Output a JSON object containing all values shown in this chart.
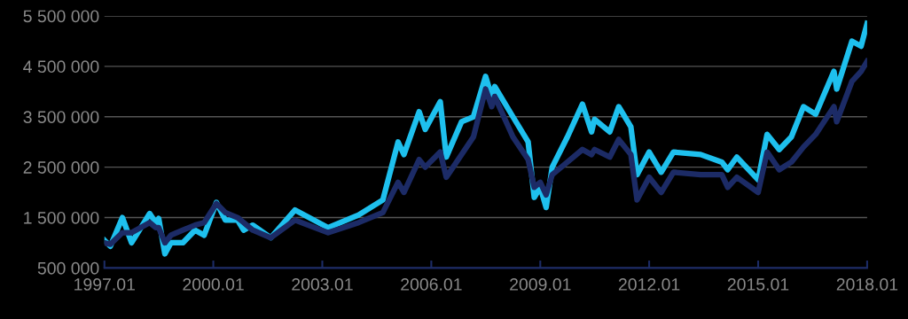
{
  "chart_data": {
    "type": "line",
    "x": [
      "1997-01",
      "1997-03",
      "1997-07",
      "1997-10",
      "1998-04",
      "1998-06",
      "1998-07",
      "1998-09",
      "1998-11",
      "1999-03",
      "1999-07",
      "1999-10",
      "2000-02",
      "2000-05",
      "2000-09",
      "2000-11",
      "2001-02",
      "2001-08",
      "2002-04",
      "2003-03",
      "2004-01",
      "2004-09",
      "2005-02",
      "2005-04",
      "2005-09",
      "2005-11",
      "2006-04",
      "2006-06",
      "2006-11",
      "2007-03",
      "2007-07",
      "2007-09",
      "2007-10",
      "2008-04",
      "2008-09",
      "2008-11",
      "2009-01",
      "2009-03",
      "2009-05",
      "2009-10",
      "2010-03",
      "2010-06",
      "2010-07",
      "2010-12",
      "2011-03",
      "2011-07",
      "2011-09",
      "2012-01",
      "2012-05",
      "2012-09",
      "2013-06",
      "2014-01",
      "2014-03",
      "2014-06",
      "2015-01",
      "2015-04",
      "2015-08",
      "2015-12",
      "2016-04",
      "2016-08",
      "2017-02",
      "2017-03",
      "2017-08",
      "2017-11",
      "2018-01"
    ],
    "series": [
      {
        "color": "#1ec0ee",
        "values": [
          1050000,
          930000,
          1500000,
          1000000,
          1580000,
          1400000,
          1480000,
          780000,
          1000000,
          1000000,
          1250000,
          1150000,
          1800000,
          1450000,
          1450000,
          1250000,
          1350000,
          1100000,
          1650000,
          1300000,
          1550000,
          1850000,
          3000000,
          2750000,
          3600000,
          3250000,
          3800000,
          2700000,
          3400000,
          3500000,
          4300000,
          3900000,
          4100000,
          3500000,
          3000000,
          1900000,
          2100000,
          1700000,
          2500000,
          3100000,
          3750000,
          3200000,
          3450000,
          3200000,
          3700000,
          3300000,
          2350000,
          2800000,
          2400000,
          2800000,
          2750000,
          2600000,
          2450000,
          2700000,
          2250000,
          3150000,
          2850000,
          3100000,
          3700000,
          3550000,
          4400000,
          4050000,
          5000000,
          4900000,
          5350000
        ]
      },
      {
        "color": "#1c2b66",
        "values": [
          1000000,
          970000,
          1200000,
          1200000,
          1400000,
          1300000,
          1300000,
          1000000,
          1150000,
          1250000,
          1350000,
          1400000,
          1780000,
          1600000,
          1500000,
          1400000,
          1250000,
          1100000,
          1450000,
          1200000,
          1400000,
          1600000,
          2200000,
          2000000,
          2650000,
          2500000,
          2800000,
          2300000,
          2750000,
          3100000,
          4050000,
          3700000,
          3900000,
          3100000,
          2650000,
          2100000,
          2200000,
          1950000,
          2350000,
          2600000,
          2850000,
          2750000,
          2850000,
          2700000,
          3050000,
          2750000,
          1850000,
          2300000,
          2000000,
          2400000,
          2350000,
          2350000,
          2100000,
          2300000,
          2000000,
          2800000,
          2450000,
          2600000,
          2900000,
          3150000,
          3700000,
          3400000,
          4200000,
          4400000,
          4600000
        ]
      }
    ],
    "xlim": [
      "1997-01",
      "2018-01"
    ],
    "xticks": [
      {
        "value": "1997-01",
        "label": "1997.01"
      },
      {
        "value": "2000-01",
        "label": "2000.01"
      },
      {
        "value": "2003-01",
        "label": "2003.01"
      },
      {
        "value": "2006-01",
        "label": "2006.01"
      },
      {
        "value": "2009-01",
        "label": "2009.01"
      },
      {
        "value": "2012-01",
        "label": "2012.01"
      },
      {
        "value": "2015-01",
        "label": "2015.01"
      },
      {
        "value": "2018-01",
        "label": "2018.01"
      }
    ],
    "ylim": [
      500000,
      5500000
    ],
    "yticks": [
      {
        "value": 500000,
        "label": "500 000"
      },
      {
        "value": 1500000,
        "label": "1 500 000"
      },
      {
        "value": 2500000,
        "label": "2 500 000"
      },
      {
        "value": 3500000,
        "label": "3 500 000"
      },
      {
        "value": 4500000,
        "label": "4 500 000"
      },
      {
        "value": 5500000,
        "label": "5 500 000"
      }
    ],
    "grid": "y"
  }
}
